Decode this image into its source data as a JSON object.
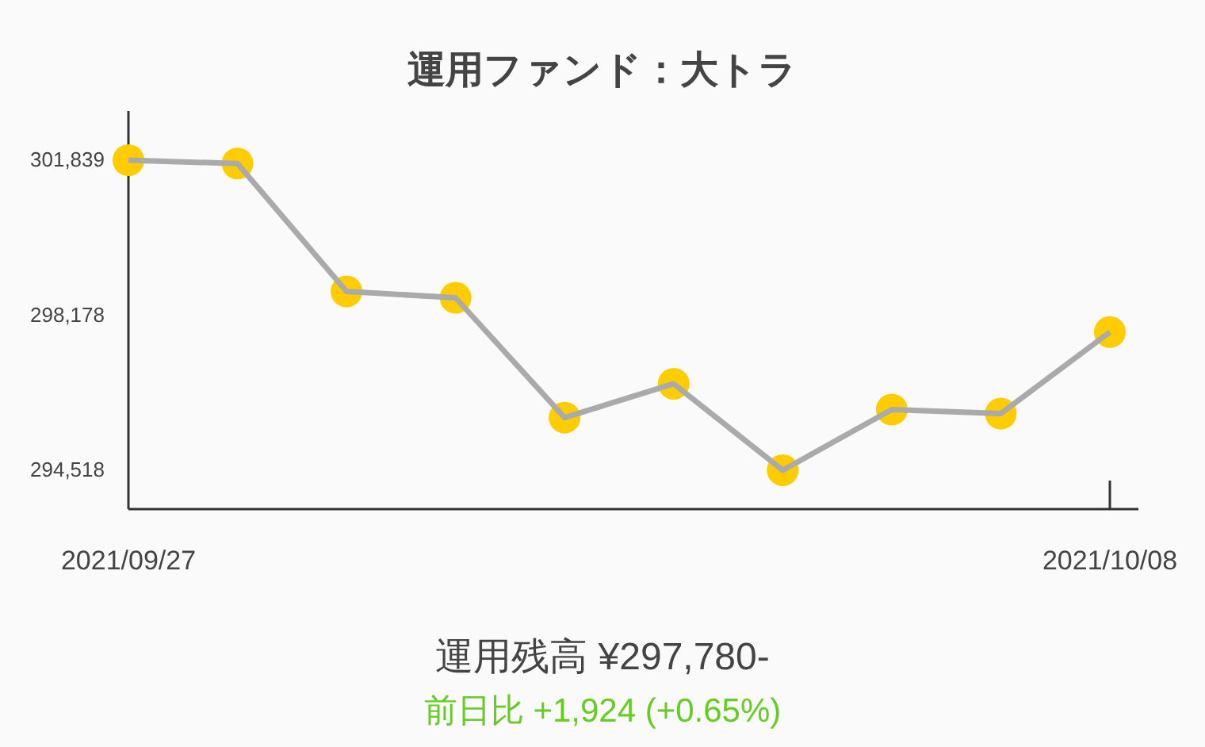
{
  "chart_data": {
    "type": "line",
    "title": "運用ファンド：大トラ",
    "categories": [
      "2021/09/27",
      null,
      null,
      null,
      null,
      null,
      null,
      null,
      null,
      "2021/10/08"
    ],
    "series": [
      {
        "color": "#aaaaaa",
        "colors": [
          "#ffcc00",
          "#ffcc00",
          "#ffcc00",
          "#ffcc00",
          "#ffcc00",
          "#ffcc00",
          "#ffcc00",
          "#ffcc00",
          "#ffcc00",
          "#ffcc00"
        ],
        "values": [
          301839,
          301760,
          298740,
          298590,
          295760,
          296560,
          294518,
          295950,
          295856,
          297780
        ]
      }
    ],
    "ylim": [
      293600,
      303000
    ],
    "yticks": [
      {
        "value": 294518,
        "label": "294,518"
      },
      {
        "value": 298178,
        "label": "298,178"
      },
      {
        "value": 301839,
        "label": "301,839"
      }
    ],
    "marker": "circle",
    "line_style": "solid",
    "grid": false,
    "annotations": [
      "運用残高 ¥297,780-",
      "前日比 +1,924 (+0.65%)"
    ]
  }
}
